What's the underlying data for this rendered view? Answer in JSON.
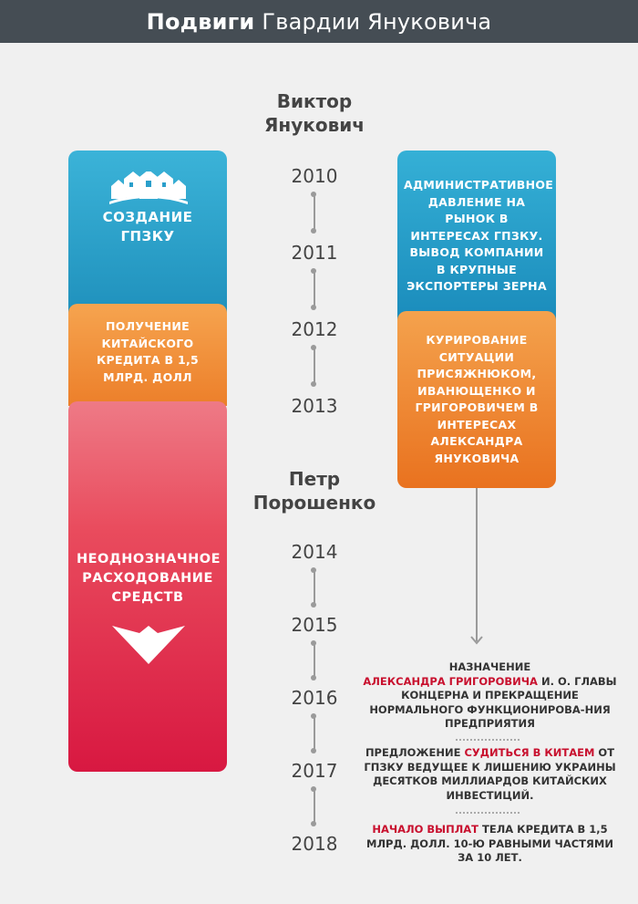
{
  "header": {
    "title_bold": "Подвиги",
    "title_rest": "Гвардии Януковича"
  },
  "persons": {
    "yanukovych": "Виктор Янукович",
    "poroshenko": "Петр Порошенко"
  },
  "years": [
    "2010",
    "2011",
    "2012",
    "2013",
    "2014",
    "2015",
    "2016",
    "2017",
    "2018"
  ],
  "left_boxes": {
    "gpzku": "Создание ГПЗКУ",
    "credit": "Получение китайского кредита в 1,5 млрд. долл",
    "spending": "Неоднозначное расходование средств"
  },
  "right_boxes": {
    "pressure": "Административное давление на рынок в интересах ГПЗКУ. Вывод компании в крупные экспортеры зерна",
    "curation": "Курирование ситуации Присяжнюком, Иванющенко и Григоровичем в интересах Александра Януковича"
  },
  "events": [
    {
      "pre": "Назначение",
      "hl": "Александра  Григоровича",
      "post": "и. о. главы концерна и прекращение нормального функционирова-ния предприятия"
    },
    {
      "pre": "Предложение",
      "hl": "судиться в Китаем",
      "post": "от ГПЗКУ ведущее к лишению Украины десятков миллиардов китайских инвестиций."
    },
    {
      "pre": "",
      "hl": "Начало выплат",
      "post": "тела кредита в 1,5  млрд. долл. 10-ю равными частями за 10 лет."
    }
  ],
  "colors": {
    "blue": "#2ba3cf",
    "orange": "#ef8a35",
    "red": "#dd2548",
    "highlight": "#c8102e",
    "header_bg": "#454d54"
  }
}
